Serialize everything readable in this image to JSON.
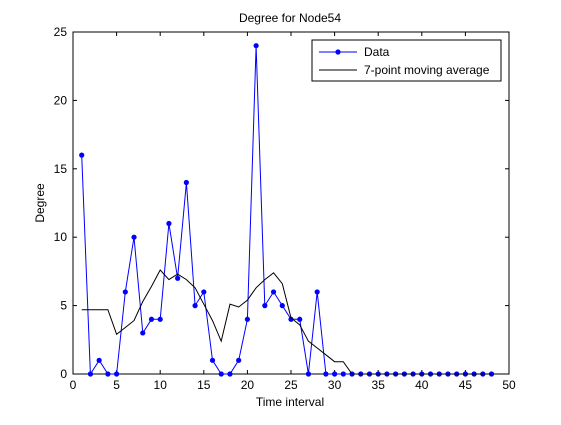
{
  "chart_data": {
    "type": "line",
    "title": "Degree for Node54",
    "xlabel": "Time interval",
    "ylabel": "Degree",
    "xlim": [
      0,
      50
    ],
    "ylim": [
      0,
      25
    ],
    "xticks": [
      0,
      5,
      10,
      15,
      20,
      25,
      30,
      35,
      40,
      45,
      50
    ],
    "yticks": [
      0,
      5,
      10,
      15,
      20,
      25
    ],
    "grid": false,
    "legend_position": "top-right",
    "series": [
      {
        "name": "Data",
        "color": "#0000ff",
        "marker": "dot",
        "x": [
          1,
          2,
          3,
          4,
          5,
          6,
          7,
          8,
          9,
          10,
          11,
          12,
          13,
          14,
          15,
          16,
          17,
          18,
          19,
          20,
          21,
          22,
          23,
          24,
          25,
          26,
          27,
          28,
          29,
          30,
          31,
          32,
          33,
          34,
          35,
          36,
          37,
          38,
          39,
          40,
          41,
          42,
          43,
          44,
          45,
          46,
          47,
          48
        ],
        "y": [
          16,
          0,
          1,
          0,
          0,
          6,
          10,
          3,
          4,
          4,
          11,
          7,
          14,
          5,
          6,
          1,
          0,
          0,
          1,
          4,
          24,
          5,
          6,
          5,
          4,
          4,
          0,
          6,
          0,
          0,
          0,
          0,
          0,
          0,
          0,
          0,
          0,
          0,
          0,
          0,
          0,
          0,
          0,
          0,
          0,
          0,
          0,
          0
        ]
      },
      {
        "name": "7-point moving average",
        "color": "#000000",
        "marker": "none",
        "x": [
          1,
          2,
          3,
          4,
          5,
          6,
          7,
          8,
          9,
          10,
          11,
          12,
          13,
          14,
          15,
          16,
          17,
          18,
          19,
          20,
          21,
          22,
          23,
          24,
          25,
          26,
          27,
          28,
          29,
          30,
          31,
          32,
          33,
          34,
          35,
          36,
          37,
          38,
          39,
          40,
          41,
          42,
          43,
          44,
          45,
          46,
          47,
          48
        ],
        "y": [
          4.7,
          4.7,
          4.7,
          4.7,
          2.9,
          3.4,
          3.9,
          5.3,
          6.4,
          7.6,
          6.9,
          7.3,
          6.9,
          6.3,
          5.1,
          3.9,
          2.4,
          5.1,
          4.9,
          5.4,
          6.3,
          6.9,
          7.4,
          6.6,
          4.1,
          3.6,
          2.4,
          1.9,
          1.4,
          0.9,
          0.9,
          0,
          0,
          0,
          0,
          0,
          0,
          0,
          0,
          0,
          0,
          0,
          0,
          0,
          0,
          0,
          0,
          0
        ]
      }
    ]
  }
}
